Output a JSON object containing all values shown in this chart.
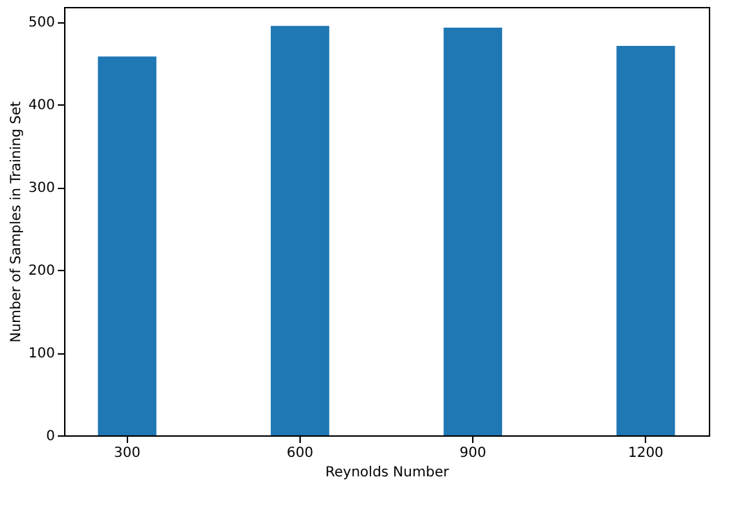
{
  "chart_data": {
    "type": "bar",
    "xlabel": "Reynolds Number",
    "ylabel": "Number of Samples in Training Set",
    "categories": [
      "300",
      "600",
      "900",
      "1200"
    ],
    "values": [
      458,
      495,
      493,
      471
    ],
    "color": "#1f77b4",
    "ylim": [
      0,
      518
    ],
    "yticks": [
      0,
      100,
      200,
      300,
      400,
      500
    ],
    "grid": false
  }
}
